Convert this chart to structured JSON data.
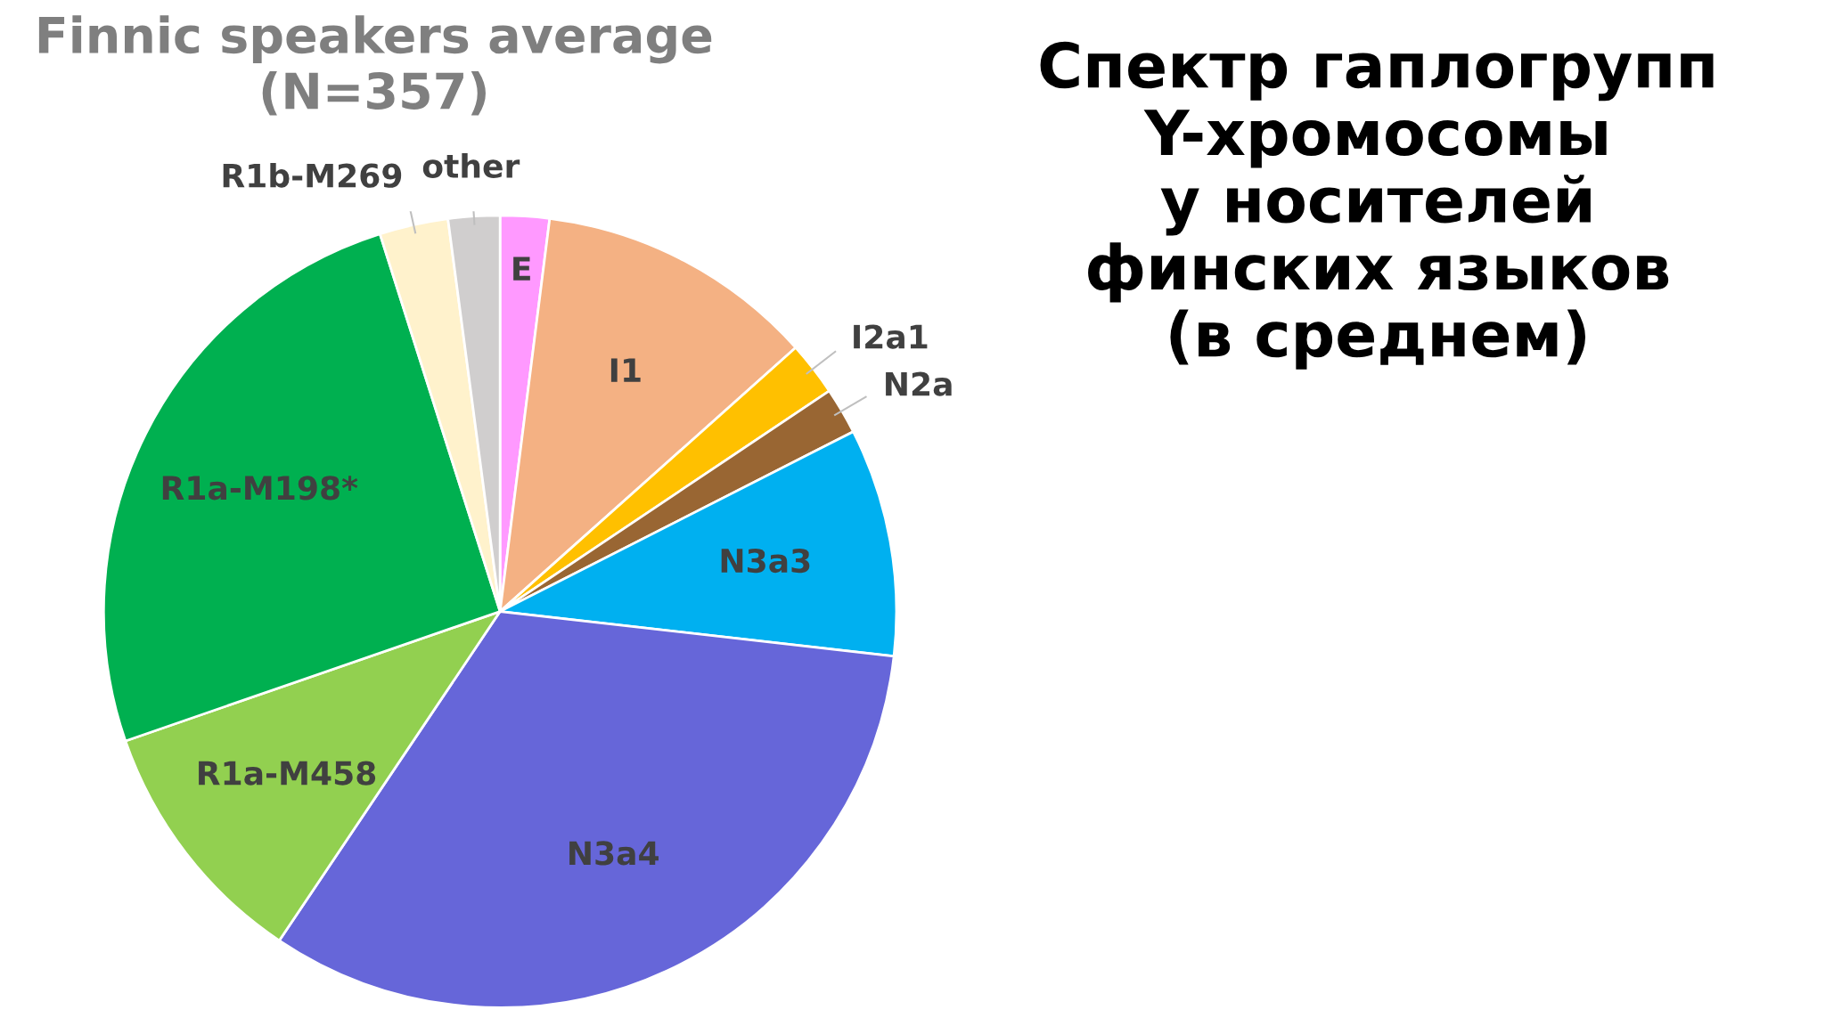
{
  "chart_data": {
    "type": "pie",
    "title": "Finnic speakers average\n(N=357)",
    "annotations": [
      "Спектр гаплогрупп\nY-хромосомы\nу носителей\nфинских языков\n(в среднем)"
    ],
    "categories": [
      "E",
      "I1",
      "I2a1",
      "N2a",
      "N3a3",
      "N3a4",
      "R1a-M458",
      "R1a-M198*",
      "R1b-M269",
      "other"
    ],
    "values": [
      2.0,
      11.4,
      2.2,
      1.9,
      9.3,
      32.6,
      10.3,
      25.4,
      2.8,
      2.1
    ],
    "colors": [
      "#ff99ff",
      "#f4b183",
      "#ffc000",
      "#996633",
      "#00b0f0",
      "#6666d9",
      "#92d050",
      "#00b050",
      "#fff2cc",
      "#d0cece"
    ]
  }
}
